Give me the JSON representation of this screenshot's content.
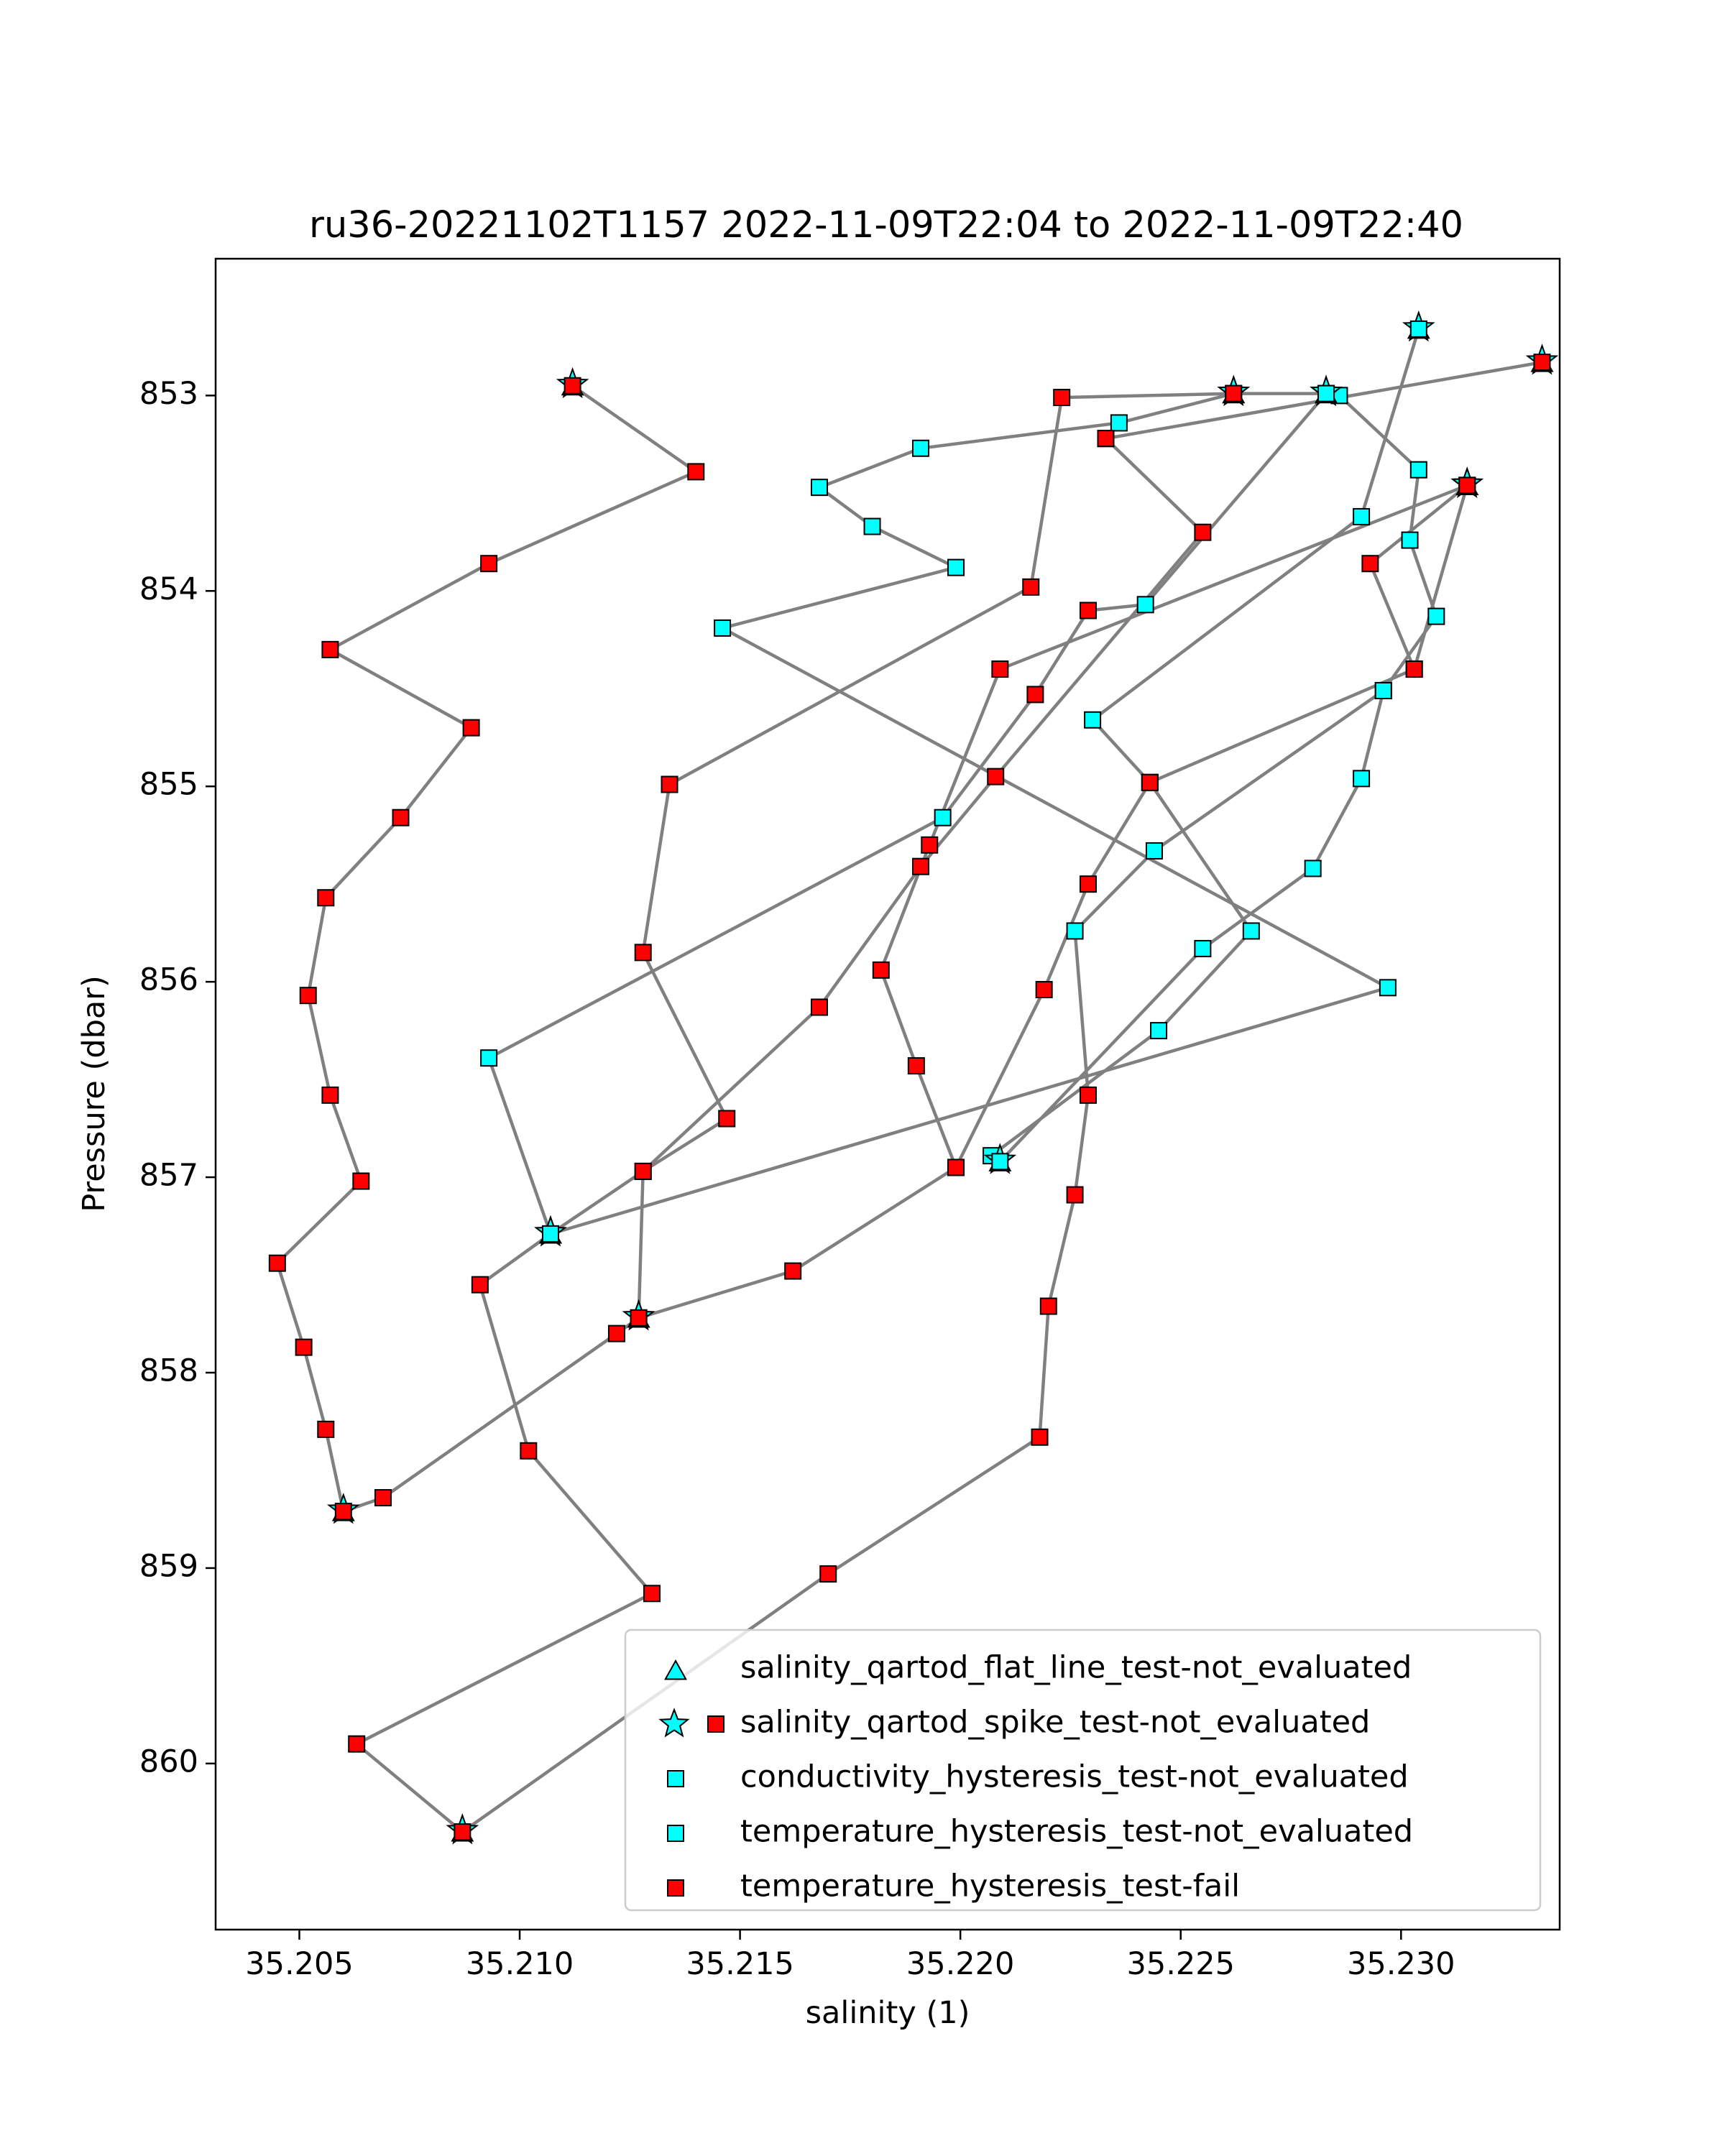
{
  "chart_data": {
    "type": "scatter",
    "title": "ru36-20221102T1157 2022-11-09T22:04 to 2022-11-09T22:40",
    "xlabel": "salinity (1)",
    "ylabel": "Pressure (dbar)",
    "xlim": [
      35.2031,
      35.2336
    ],
    "ylim": [
      860.85,
      852.3
    ],
    "y_inverted": true,
    "grid": false,
    "legend_position": "lower-right",
    "xticks": [
      "35.205",
      "35.210",
      "35.215",
      "35.220",
      "35.225",
      "35.230"
    ],
    "xtick_values": [
      35.205,
      35.21,
      35.215,
      35.22,
      35.225,
      35.23
    ],
    "yticks": [
      "853",
      "854",
      "855",
      "856",
      "857",
      "858",
      "859",
      "860"
    ],
    "ytick_values": [
      853,
      854,
      855,
      856,
      857,
      858,
      859,
      860
    ],
    "colors": {
      "line": "#808080",
      "fail": "#ff0000",
      "not_evaluated": "#00ffff",
      "edge": "#000000"
    },
    "legend": [
      {
        "label": "salinity_qartod_flat_line_test-not_evaluated",
        "marker": "triangle",
        "color": "#00ffff"
      },
      {
        "label": "salinity_qartod_spike_test-not_evaluated",
        "marker": "star+square",
        "color": "#00ffff"
      },
      {
        "label": "conductivity_hysteresis_test-not_evaluated",
        "marker": "square",
        "color": "#00ffff"
      },
      {
        "label": "temperature_hysteresis_test-not_evaluated",
        "marker": "square",
        "color": "#00ffff"
      },
      {
        "label": "temperature_hysteresis_test-fail",
        "marker": "square",
        "color": "#ff0000"
      }
    ],
    "segments": [
      {
        "points": [
          [
            35.2112,
            852.95
          ],
          [
            35.214,
            853.39
          ],
          [
            35.2093,
            853.86
          ],
          [
            35.2057,
            854.3
          ],
          [
            35.2089,
            854.7
          ],
          [
            35.2073,
            855.16
          ],
          [
            35.2056,
            855.57
          ],
          [
            35.2052,
            856.07
          ],
          [
            35.2057,
            856.58
          ],
          [
            35.2064,
            857.02
          ],
          [
            35.2045,
            857.44
          ],
          [
            35.2051,
            857.87
          ],
          [
            35.2056,
            858.29
          ],
          [
            35.206,
            858.71
          ],
          [
            35.2069,
            858.64
          ],
          [
            35.2122,
            857.8
          ],
          [
            35.2127,
            857.72
          ],
          [
            35.2162,
            857.48
          ],
          [
            35.2199,
            856.95
          ],
          [
            35.2219,
            856.04
          ],
          [
            35.2229,
            855.5
          ],
          [
            35.2243,
            854.98
          ],
          [
            35.2303,
            854.4
          ],
          [
            35.2315,
            853.46
          ]
        ],
        "flags": [
          "sf",
          "f",
          "f",
          "f",
          "f",
          "f",
          "f",
          "f",
          "f",
          "f",
          "f",
          "f",
          "f",
          "sf",
          "f",
          "f",
          "sf",
          "f",
          "f",
          "f",
          "f",
          "f",
          "f",
          "sf"
        ]
      },
      {
        "points": [
          [
            35.2315,
            853.46
          ],
          [
            35.2209,
            854.4
          ],
          [
            35.2193,
            855.3
          ],
          [
            35.2182,
            855.94
          ],
          [
            35.219,
            856.43
          ],
          [
            35.2199,
            856.95
          ]
        ],
        "flags": [
          "sf",
          "f",
          "f",
          "f",
          "f",
          "f"
        ]
      },
      {
        "points": [
          [
            35.2233,
            853.22
          ],
          [
            35.2255,
            853.7
          ],
          [
            35.2208,
            854.95
          ],
          [
            35.2191,
            855.41
          ],
          [
            35.2168,
            856.13
          ],
          [
            35.2128,
            856.97
          ],
          [
            35.2107,
            857.29
          ],
          [
            35.2091,
            857.55
          ],
          [
            35.2102,
            858.4
          ],
          [
            35.213,
            859.13
          ],
          [
            35.2063,
            859.9
          ],
          [
            35.2087,
            860.35
          ],
          [
            35.217,
            859.03
          ],
          [
            35.2218,
            858.33
          ],
          [
            35.222,
            857.66
          ],
          [
            35.2226,
            857.09
          ],
          [
            35.2229,
            856.58
          ],
          [
            35.2226,
            855.74
          ],
          [
            35.2244,
            855.33
          ],
          [
            35.2296,
            854.51
          ]
        ],
        "flags": [
          "f",
          "f",
          "f",
          "f",
          "f",
          "f",
          "sc",
          "f",
          "f",
          "f",
          "f",
          "sf",
          "f",
          "f",
          "f",
          "f",
          "f",
          "c",
          "c",
          "c"
        ]
      },
      {
        "points": [
          [
            35.2296,
            854.51
          ],
          [
            35.2308,
            854.13
          ],
          [
            35.2302,
            853.74
          ],
          [
            35.2304,
            853.38
          ],
          [
            35.2286,
            853.0
          ],
          [
            35.2283,
            852.99
          ],
          [
            35.2262,
            852.99
          ],
          [
            35.2223,
            853.01
          ],
          [
            35.2216,
            853.98
          ],
          [
            35.2134,
            854.99
          ],
          [
            35.2128,
            855.85
          ],
          [
            35.2147,
            856.7
          ],
          [
            35.2128,
            856.97
          ],
          [
            35.2127,
            857.72
          ]
        ],
        "flags": [
          "c",
          "c",
          "c",
          "c",
          "c",
          "sc",
          "sf",
          "f",
          "f",
          "f",
          "f",
          "f",
          "f",
          "sf"
        ]
      },
      {
        "points": [
          [
            35.2283,
            852.99
          ],
          [
            35.2242,
            854.07
          ],
          [
            35.2229,
            854.1
          ],
          [
            35.2217,
            854.53
          ],
          [
            35.2196,
            855.16
          ],
          [
            35.2093,
            856.39
          ],
          [
            35.2107,
            857.29
          ],
          [
            35.2297,
            856.03
          ],
          [
            35.2146,
            854.19
          ],
          [
            35.2199,
            853.88
          ],
          [
            35.218,
            853.67
          ],
          [
            35.2168,
            853.47
          ],
          [
            35.2191,
            853.27
          ],
          [
            35.2236,
            853.14
          ],
          [
            35.2262,
            852.99
          ]
        ],
        "flags": [
          "sc",
          "c",
          "f",
          "f",
          "c",
          "c",
          "sc",
          "c",
          "c",
          "c",
          "c",
          "c",
          "c",
          "c",
          "sf"
        ]
      },
      {
        "points": [
          [
            35.2304,
            852.66
          ],
          [
            35.2291,
            853.62
          ],
          [
            35.223,
            854.66
          ],
          [
            35.2243,
            854.98
          ],
          [
            35.2266,
            855.74
          ],
          [
            35.2245,
            856.25
          ],
          [
            35.2207,
            856.89
          ],
          [
            35.2209,
            856.92
          ],
          [
            35.2255,
            855.83
          ],
          [
            35.228,
            855.42
          ],
          [
            35.2291,
            854.96
          ],
          [
            35.2296,
            854.51
          ]
        ],
        "flags": [
          "sc",
          "c",
          "c",
          "f",
          "c",
          "c",
          "c",
          "sc",
          "c",
          "c",
          "c",
          "c"
        ]
      },
      {
        "points": [
          [
            35.2332,
            852.83
          ],
          [
            35.2233,
            853.22
          ]
        ],
        "flags": [
          "sf",
          "f"
        ]
      },
      {
        "points": [
          [
            35.2315,
            853.46
          ],
          [
            35.2293,
            853.86
          ],
          [
            35.2303,
            854.4
          ]
        ],
        "flags": [
          "sf",
          "f",
          "f"
        ]
      }
    ]
  }
}
